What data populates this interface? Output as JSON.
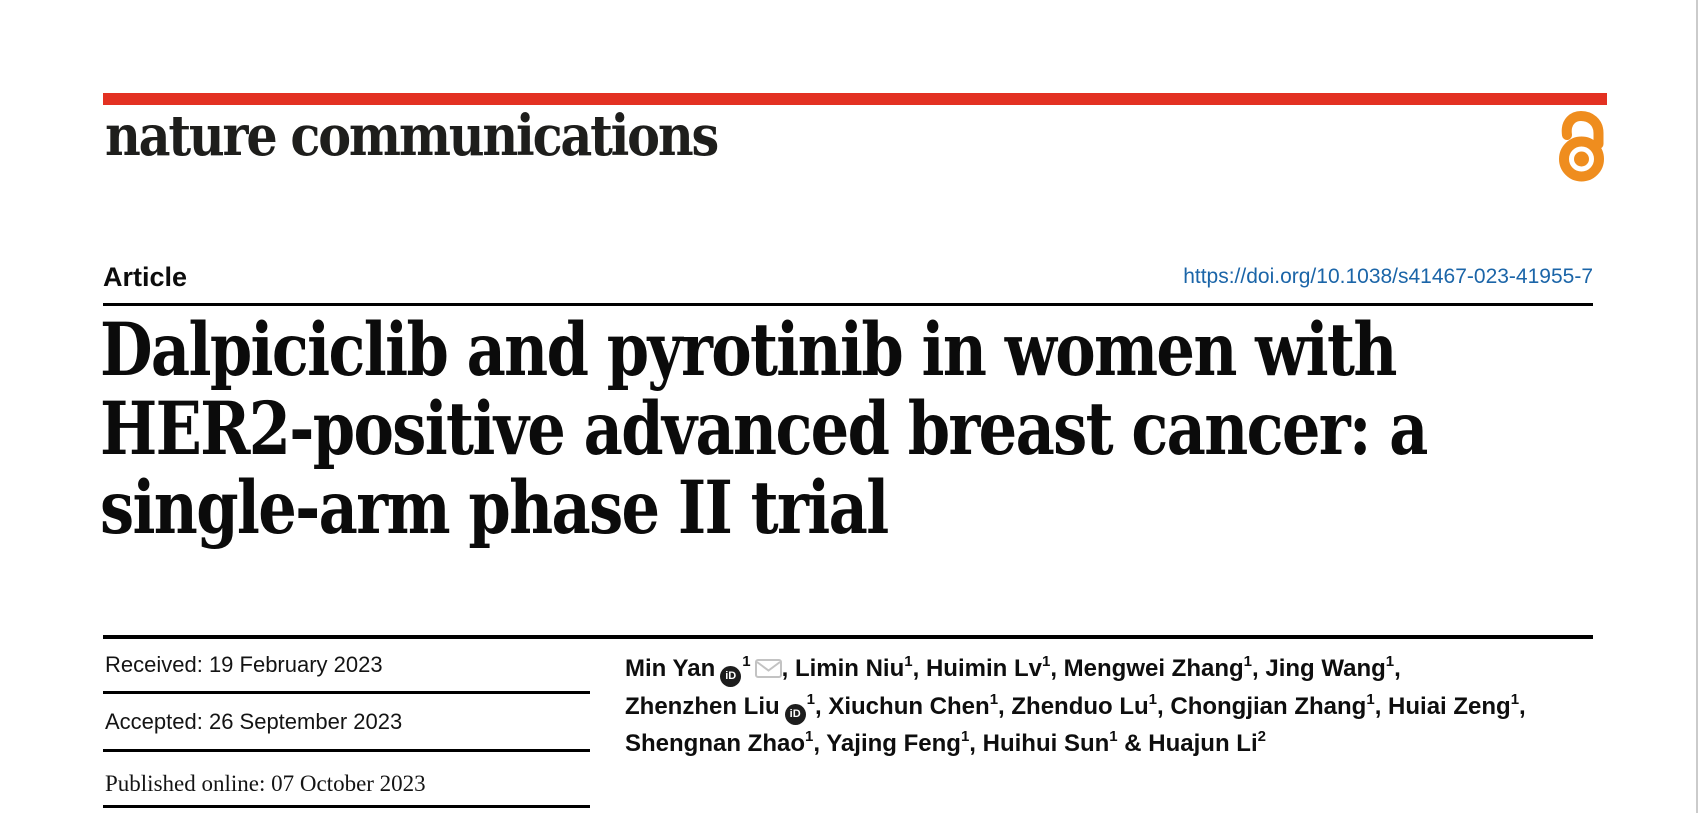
{
  "journal": {
    "wordmark": "nature communications"
  },
  "article": {
    "kicker": "Article",
    "doi_url": "https://doi.org/10.1038/s41467-023-41955-7",
    "title_lines": [
      "Dalpiciclib and pyrotinib in women with",
      "HER2-positive advanced breast cancer: a",
      "single-arm phase II trial"
    ]
  },
  "dates": {
    "received": "Received: 19 February 2023",
    "accepted": "Accepted: 26 September 2023",
    "published": "Published online: 07 October 2023"
  },
  "authors": {
    "list": [
      {
        "name": "Min Yan",
        "sup": "1",
        "orcid": true,
        "email": true
      },
      {
        "name": "Limin Niu",
        "sup": "1"
      },
      {
        "name": "Huimin Lv",
        "sup": "1"
      },
      {
        "name": "Mengwei Zhang",
        "sup": "1"
      },
      {
        "name": "Jing Wang",
        "sup": "1"
      },
      {
        "name": "Zhenzhen Liu",
        "sup": "1",
        "orcid": true
      },
      {
        "name": "Xiuchun Chen",
        "sup": "1"
      },
      {
        "name": "Zhenduo Lu",
        "sup": "1"
      },
      {
        "name": "Chongjian Zhang",
        "sup": "1"
      },
      {
        "name": "Huiai Zeng",
        "sup": "1"
      },
      {
        "name": "Shengnan Zhao",
        "sup": "1"
      },
      {
        "name": "Yajing Feng",
        "sup": "1"
      },
      {
        "name": "Huihui Sun",
        "sup": "1"
      },
      {
        "name": "Huajun Li",
        "sup": "2"
      }
    ],
    "separator": ",",
    "last_separator": " & ",
    "line_break_after": [
      "Jing Wang",
      "Huiai Zeng"
    ]
  },
  "icons": {
    "orcid_label": "iD"
  },
  "colors": {
    "brand_red": "#e33122",
    "doi_blue": "#1b65a8",
    "open_access_orange": "#ef8d1e",
    "envelope_grey": "#c3c3c3"
  }
}
